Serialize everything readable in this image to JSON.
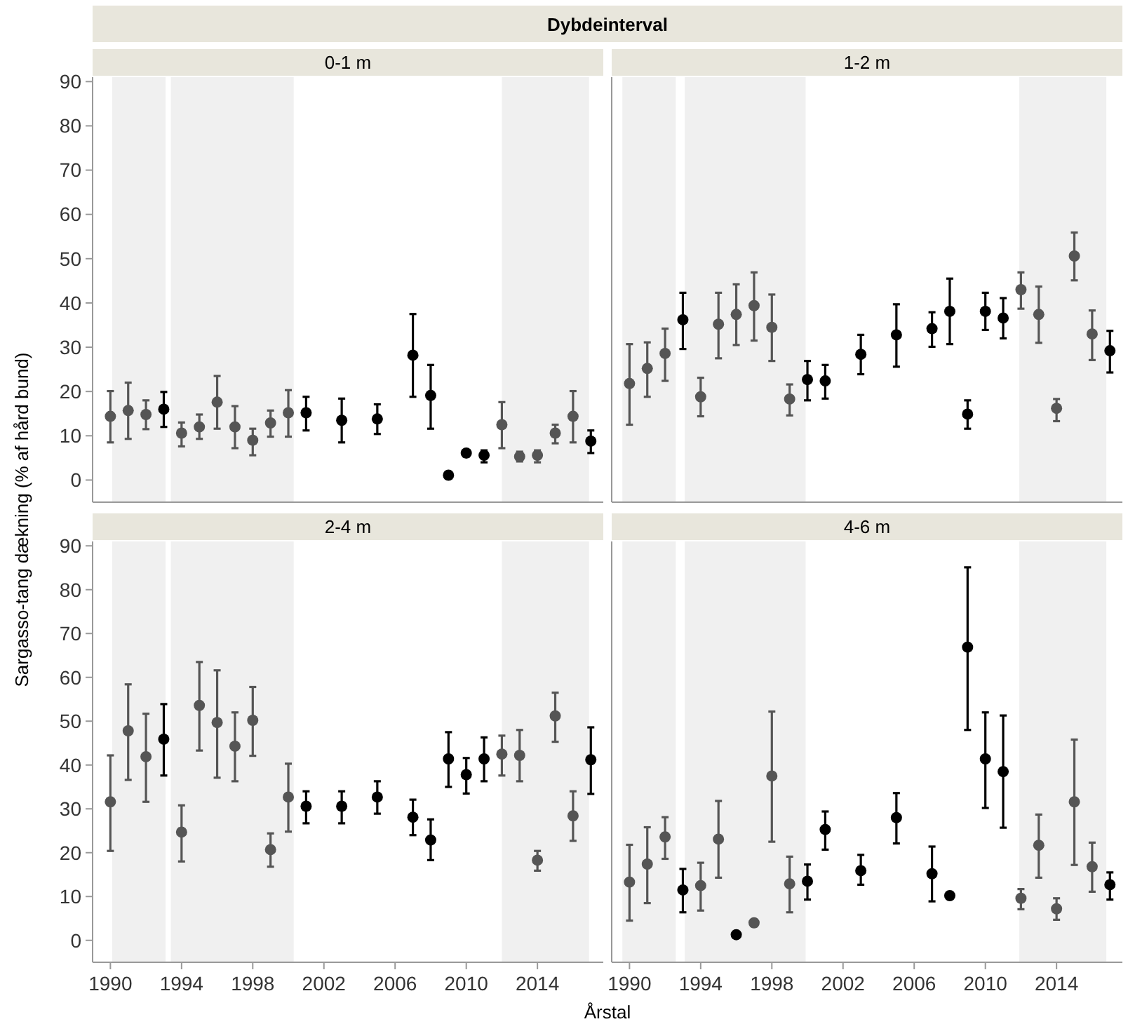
{
  "chart_data": [
    {
      "type": "scatter",
      "title": "0-1 m",
      "annotations": [
        "Dybdeinterval"
      ],
      "ylabel": "Sargasso-tang dækning (% af hård bund)",
      "marker": "circle",
      "tick_labels": "y",
      "xlim": [
        1989,
        2017.7
      ],
      "ylim": [
        -5,
        91
      ],
      "xticks": [
        1990,
        1994,
        1998,
        2002,
        2006,
        2010,
        2014
      ],
      "yticks": [
        0,
        10,
        20,
        30,
        40,
        50,
        60,
        70,
        80,
        90
      ],
      "bands": [
        {
          "axis": "x",
          "from": 1990.1,
          "to": 1993.1,
          "color": "#f0f0f0"
        },
        {
          "axis": "x",
          "from": 1993.4,
          "to": 2000.3,
          "color": "#f0f0f0"
        },
        {
          "axis": "x",
          "from": 2012,
          "to": 2016.9,
          "color": "#f0f0f0"
        }
      ],
      "x": [
        1990,
        1991,
        1992,
        1993,
        1994,
        1995,
        1996,
        1997,
        1998,
        1999,
        2000,
        2001,
        2003,
        2005,
        2007,
        2008,
        2009,
        2010,
        2011,
        2012,
        2013,
        2014,
        2015,
        2016,
        2017
      ],
      "values": [
        14.4,
        15.7,
        14.8,
        16,
        10.6,
        12,
        17.6,
        12,
        9,
        12.9,
        15.2,
        15.2,
        13.5,
        13.8,
        28.2,
        19.1,
        1.1,
        6.1,
        5.6,
        12.5,
        5.3,
        5.6,
        10.6,
        14.4,
        8.8
      ],
      "errors": [
        [
          8.5,
          20.1
        ],
        [
          9.3,
          22
        ],
        [
          11.5,
          18
        ],
        [
          12,
          19.9
        ],
        [
          7.6,
          13
        ],
        [
          9.3,
          14.8
        ],
        [
          11.6,
          23.5
        ],
        [
          7.2,
          16.7
        ],
        [
          5.6,
          11.6
        ],
        [
          9.8,
          15.7
        ],
        [
          9.8,
          20.3
        ],
        [
          11.2,
          18.8
        ],
        [
          8.5,
          18.4
        ],
        [
          10.4,
          17.1
        ],
        [
          18.8,
          37.5
        ],
        [
          11.6,
          26
        ],
        null,
        [
          5.3,
          6.8
        ],
        [
          4,
          6.7
        ],
        [
          7.2,
          17.6
        ],
        [
          4.2,
          6.4
        ],
        [
          4,
          6.7
        ],
        [
          8.3,
          12.5
        ],
        [
          8.5,
          20.1
        ],
        [
          6.1,
          11.2
        ]
      ],
      "colors": [
        "#555555",
        "#555555",
        "#555555",
        "#000000",
        "#555555",
        "#555555",
        "#555555",
        "#555555",
        "#555555",
        "#555555",
        "#555555",
        "#000000",
        "#000000",
        "#000000",
        "#000000",
        "#000000",
        "#000000",
        "#000000",
        "#000000",
        "#555555",
        "#555555",
        "#555555",
        "#555555",
        "#555555",
        "#000000"
      ]
    },
    {
      "type": "scatter",
      "title": "1-2 m",
      "marker": "circle",
      "tick_labels": false,
      "xlim": [
        1989,
        2017.7
      ],
      "ylim": [
        -5,
        91
      ],
      "xticks": [
        1990,
        1994,
        1998,
        2002,
        2006,
        2010,
        2014
      ],
      "yticks": [
        0,
        10,
        20,
        30,
        40,
        50,
        60,
        70,
        80,
        90
      ],
      "bands": [
        {
          "axis": "x",
          "from": 1989.6,
          "to": 1992.6,
          "color": "#f0f0f0"
        },
        {
          "axis": "x",
          "from": 1993.1,
          "to": 1999.9,
          "color": "#f0f0f0"
        },
        {
          "axis": "x",
          "from": 2011.9,
          "to": 2016.8,
          "color": "#f0f0f0"
        }
      ],
      "x": [
        1990,
        1991,
        1992,
        1993,
        1994,
        1995,
        1996,
        1997,
        1998,
        1999,
        2000,
        2001,
        2003,
        2005,
        2007,
        2008,
        2009,
        2010,
        2011,
        2012,
        2013,
        2014,
        2015,
        2016,
        2017
      ],
      "values": [
        21.8,
        25.2,
        28.6,
        36.2,
        18.8,
        35.2,
        37.4,
        39.4,
        34.5,
        18.3,
        22.7,
        22.4,
        28.4,
        32.8,
        34.2,
        38.1,
        14.9,
        38.1,
        36.6,
        43,
        37.4,
        16.2,
        50.6,
        33,
        29.2
      ],
      "errors": [
        [
          12.5,
          30.7
        ],
        [
          18.8,
          31.1
        ],
        [
          22.4,
          34.2
        ],
        [
          29.6,
          42.3
        ],
        [
          14.4,
          23.1
        ],
        [
          27.5,
          42.3
        ],
        [
          30.5,
          44.2
        ],
        [
          31.5,
          46.9
        ],
        [
          26.9,
          41.9
        ],
        [
          14.6,
          21.6
        ],
        [
          18,
          26.9
        ],
        [
          18.4,
          26
        ],
        [
          23.9,
          32.8
        ],
        [
          25.6,
          39.7
        ],
        [
          30.1,
          37.9
        ],
        [
          30.7,
          45.5
        ],
        [
          11.6,
          18
        ],
        [
          33.9,
          42.3
        ],
        [
          32,
          41.1
        ],
        [
          38.7,
          46.9
        ],
        [
          31,
          43.7
        ],
        [
          13.3,
          18.3
        ],
        [
          45.1,
          55.9
        ],
        [
          27.1,
          38.3
        ],
        [
          24.3,
          33.7
        ]
      ],
      "colors": [
        "#555555",
        "#555555",
        "#555555",
        "#000000",
        "#555555",
        "#555555",
        "#555555",
        "#555555",
        "#555555",
        "#555555",
        "#000000",
        "#000000",
        "#000000",
        "#000000",
        "#000000",
        "#000000",
        "#000000",
        "#000000",
        "#000000",
        "#555555",
        "#555555",
        "#555555",
        "#555555",
        "#555555",
        "#000000"
      ]
    },
    {
      "type": "scatter",
      "title": "2-4 m",
      "xlabel": "Årstal",
      "marker": "circle",
      "xlim": [
        1989,
        2017.7
      ],
      "ylim": [
        -5,
        91
      ],
      "xticks": [
        1990,
        1994,
        1998,
        2002,
        2006,
        2010,
        2014
      ],
      "yticks": [
        0,
        10,
        20,
        30,
        40,
        50,
        60,
        70,
        80,
        90
      ],
      "bands": [
        {
          "axis": "x",
          "from": 1990.1,
          "to": 1993.1,
          "color": "#f0f0f0"
        },
        {
          "axis": "x",
          "from": 1993.4,
          "to": 2000.3,
          "color": "#f0f0f0"
        },
        {
          "axis": "x",
          "from": 2012,
          "to": 2016.9,
          "color": "#f0f0f0"
        }
      ],
      "x": [
        1990,
        1991,
        1992,
        1993,
        1994,
        1995,
        1996,
        1997,
        1998,
        1999,
        2000,
        2001,
        2003,
        2005,
        2007,
        2008,
        2009,
        2010,
        2011,
        2012,
        2013,
        2014,
        2015,
        2016,
        2017
      ],
      "values": [
        31.6,
        47.8,
        41.9,
        45.9,
        24.7,
        53.6,
        49.7,
        44.3,
        50.2,
        20.7,
        32.7,
        30.6,
        30.6,
        32.7,
        28.1,
        22.9,
        41.4,
        37.8,
        41.4,
        42.5,
        42.2,
        18.3,
        51.2,
        28.4,
        41.2
      ],
      "errors": [
        [
          20.4,
          42.2
        ],
        [
          36.6,
          58.4
        ],
        [
          31.6,
          51.7
        ],
        [
          37.6,
          53.9
        ],
        [
          18,
          30.8
        ],
        [
          43.3,
          63.5
        ],
        [
          37.1,
          61.6
        ],
        [
          36.3,
          52
        ],
        [
          42.1,
          57.8
        ],
        [
          16.8,
          24.4
        ],
        [
          24.8,
          40.3
        ],
        [
          26.7,
          34
        ],
        [
          26.7,
          34
        ],
        [
          28.9,
          36.3
        ],
        [
          24,
          32.1
        ],
        [
          18.3,
          27.6
        ],
        [
          35,
          47.5
        ],
        [
          33.5,
          41.6
        ],
        [
          36.3,
          46.3
        ],
        [
          37.6,
          46.7
        ],
        [
          36.3,
          48
        ],
        [
          15.9,
          20.4
        ],
        [
          45.3,
          56.5
        ],
        [
          22.7,
          34
        ],
        [
          33.4,
          48.6
        ]
      ],
      "colors": [
        "#555555",
        "#555555",
        "#555555",
        "#000000",
        "#555555",
        "#555555",
        "#555555",
        "#555555",
        "#555555",
        "#555555",
        "#555555",
        "#000000",
        "#000000",
        "#000000",
        "#000000",
        "#000000",
        "#000000",
        "#000000",
        "#000000",
        "#555555",
        "#555555",
        "#555555",
        "#555555",
        "#555555",
        "#000000"
      ]
    },
    {
      "type": "scatter",
      "title": "4-6 m",
      "marker": "circle",
      "tick_labels": "x",
      "xlim": [
        1989,
        2017.7
      ],
      "ylim": [
        -5,
        91
      ],
      "xticks": [
        1990,
        1994,
        1998,
        2002,
        2006,
        2010,
        2014
      ],
      "yticks": [
        0,
        10,
        20,
        30,
        40,
        50,
        60,
        70,
        80,
        90
      ],
      "bands": [
        {
          "axis": "x",
          "from": 1989.6,
          "to": 1992.6,
          "color": "#f0f0f0"
        },
        {
          "axis": "x",
          "from": 1993.1,
          "to": 1999.9,
          "color": "#f0f0f0"
        },
        {
          "axis": "x",
          "from": 2011.9,
          "to": 2016.8,
          "color": "#f0f0f0"
        }
      ],
      "x": [
        1990,
        1991,
        1992,
        1993,
        1994,
        1995,
        1996,
        1997,
        1998,
        1999,
        2000,
        2001,
        2003,
        2005,
        2007,
        2008,
        2009,
        2010,
        2011,
        2012,
        2013,
        2014,
        2015,
        2016,
        2017
      ],
      "values": [
        13.3,
        17.4,
        23.6,
        11.5,
        12.5,
        23.1,
        1.3,
        4,
        37.5,
        12.9,
        13.5,
        25.3,
        15.9,
        28,
        15.2,
        10.2,
        66.9,
        41.4,
        38.5,
        9.6,
        21.7,
        7.2,
        31.6,
        16.8,
        12.7
      ],
      "errors": [
        [
          4.5,
          21.8
        ],
        [
          8.5,
          25.8
        ],
        [
          18.6,
          28.1
        ],
        [
          6.4,
          16.3
        ],
        [
          6.8,
          17.7
        ],
        [
          14.3,
          31.8
        ],
        null,
        [
          3.2,
          4.7
        ],
        [
          22.5,
          52.2
        ],
        [
          6.4,
          19.1
        ],
        [
          9.3,
          17.3
        ],
        [
          20.7,
          29.4
        ],
        [
          12.7,
          19.5
        ],
        [
          22.1,
          33.6
        ],
        [
          8.9,
          21.4
        ],
        null,
        [
          48,
          85.1
        ],
        [
          30.2,
          52
        ],
        [
          25.7,
          51.3
        ],
        [
          7.1,
          11.7
        ],
        [
          14.3,
          28.7
        ],
        [
          4.7,
          9.6
        ],
        [
          17.2,
          45.8
        ],
        [
          11.1,
          22.3
        ],
        [
          9.3,
          15.5
        ]
      ],
      "colors": [
        "#555555",
        "#555555",
        "#555555",
        "#000000",
        "#555555",
        "#555555",
        "#000000",
        "#555555",
        "#555555",
        "#555555",
        "#000000",
        "#000000",
        "#000000",
        "#000000",
        "#000000",
        "#000000",
        "#000000",
        "#000000",
        "#000000",
        "#555555",
        "#555555",
        "#555555",
        "#555555",
        "#555555",
        "#000000"
      ]
    }
  ]
}
